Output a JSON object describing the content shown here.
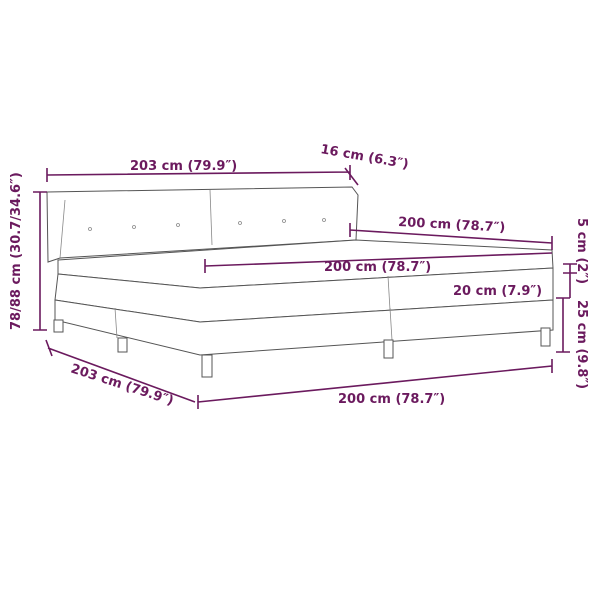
{
  "accent_color": "#6b1a5e",
  "dimensions": {
    "headboard_width": "203 cm (79.9″)",
    "headboard_depth": "16 cm (6.3″)",
    "bed_length": "200 cm (78.7″)",
    "topper_height": "5 cm (2″)",
    "mattress_width": "200 cm (78.7″)",
    "mattress_height": "20 cm (7.9″)",
    "total_height": "78/88 cm (30.7/34.6″)",
    "base_height": "25 cm (9.8″)",
    "overall_length": "203 cm (79.9″)",
    "base_width": "200 cm (78.7″)"
  }
}
